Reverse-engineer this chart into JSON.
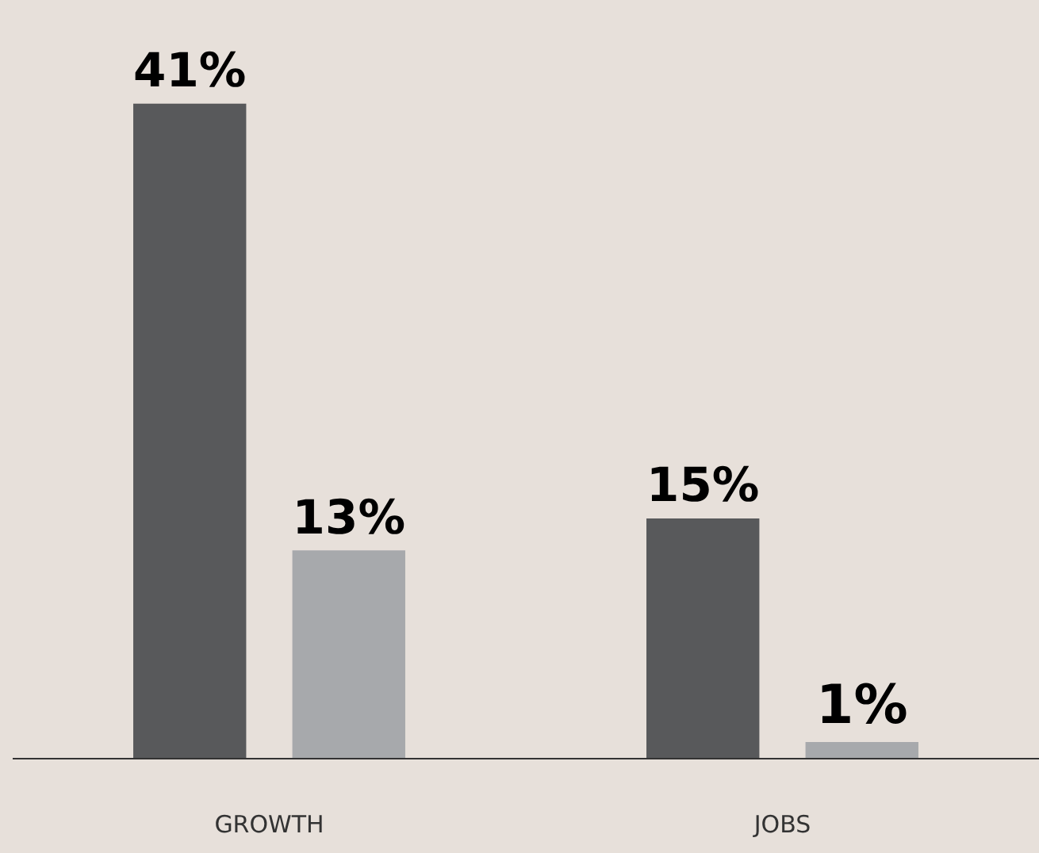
{
  "chart_data": {
    "type": "bar",
    "categories": [
      "GROWTH",
      "JOBS"
    ],
    "series": [
      {
        "color": "#58595b",
        "values": [
          41,
          15
        ],
        "value_labels": [
          "41%",
          "15%"
        ]
      },
      {
        "color": "#a7a9ac",
        "values": [
          13,
          1
        ],
        "value_labels": [
          "13%",
          "1%"
        ]
      }
    ]
  }
}
